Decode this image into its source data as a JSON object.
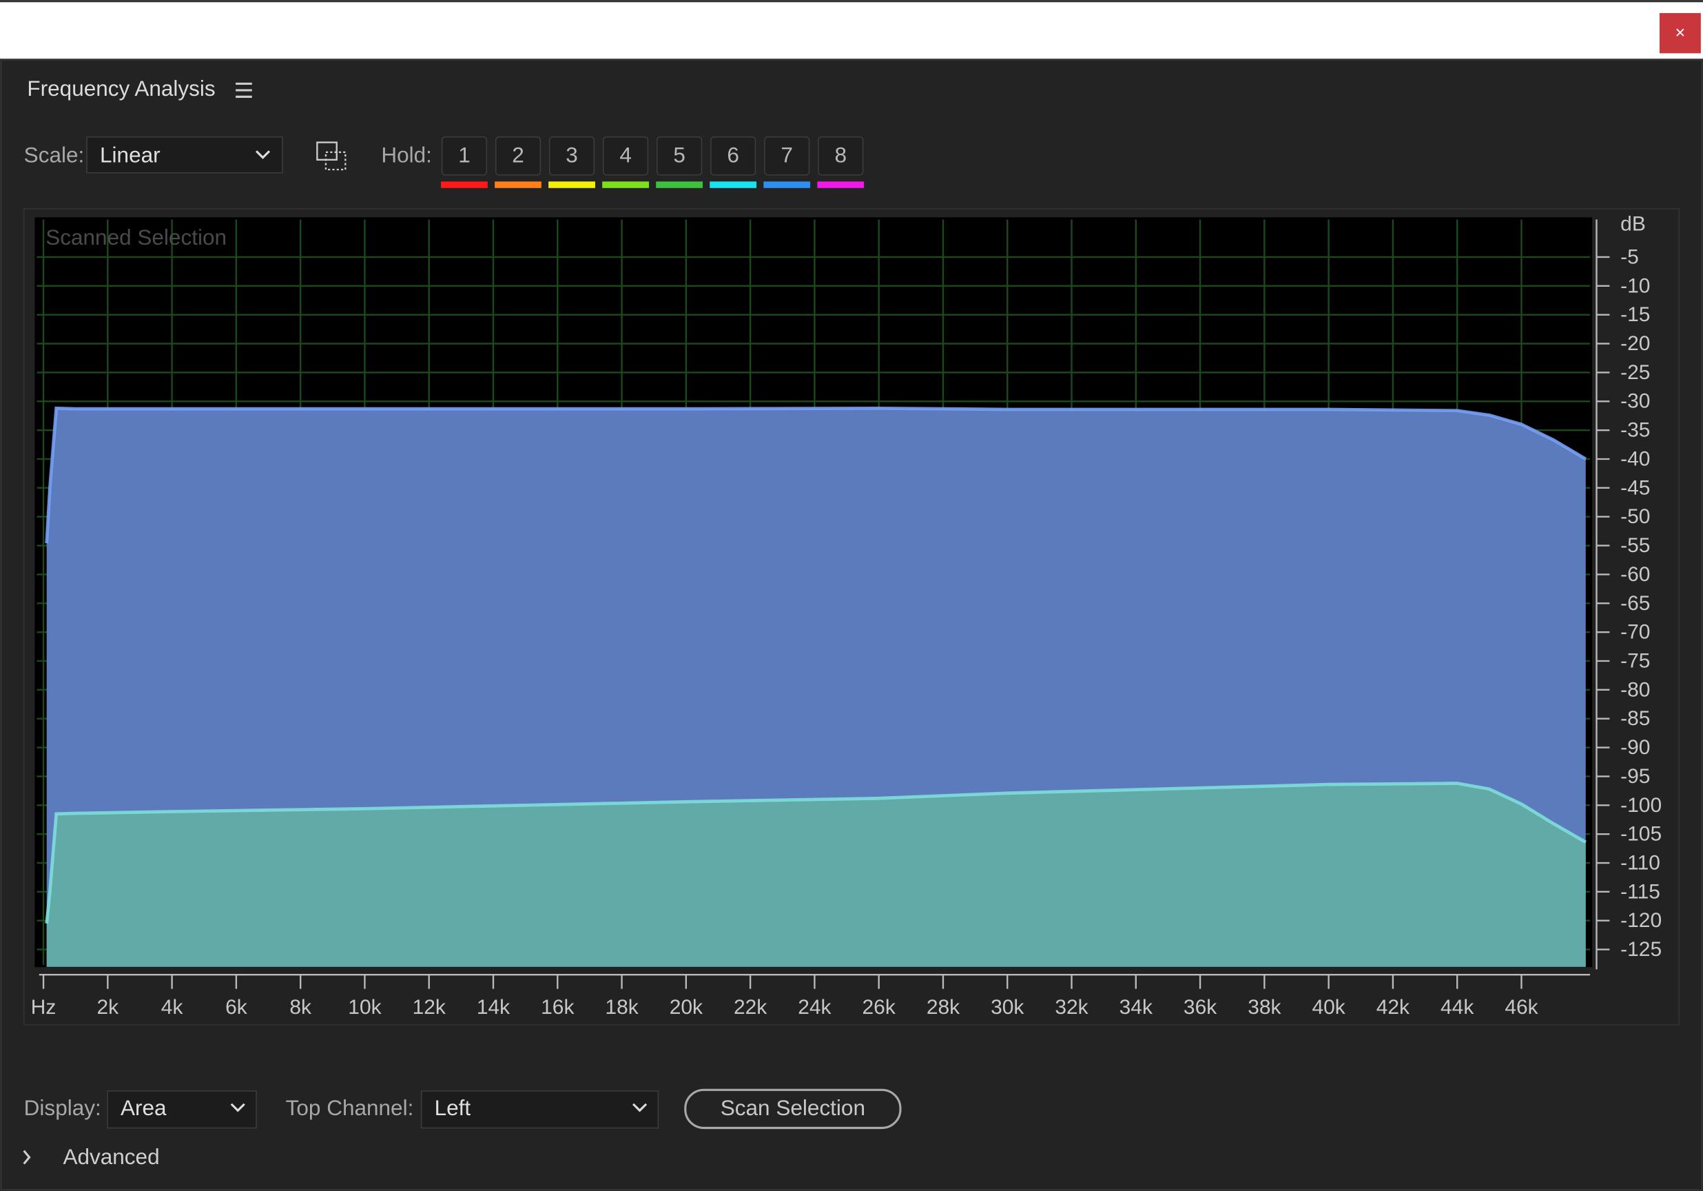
{
  "window": {
    "close": "×"
  },
  "panel": {
    "title": "Frequency Analysis",
    "scale_label": "Scale:",
    "scale_value": "Linear",
    "hold_label": "Hold:",
    "hold_buttons": [
      "1",
      "2",
      "3",
      "4",
      "5",
      "6",
      "7",
      "8"
    ],
    "hold_colors": [
      "#ff1a1a",
      "#ff7f1a",
      "#f5f00a",
      "#7ee01a",
      "#3ec23e",
      "#1ae3f0",
      "#2f8ff0",
      "#f01ae8"
    ],
    "display_label": "Display:",
    "display_value": "Area",
    "channel_label": "Top Channel:",
    "channel_value": "Left",
    "scan_button": "Scan Selection",
    "advanced": "Advanced"
  },
  "chart_data": {
    "type": "area",
    "annotation": "Scanned Selection",
    "y_label": "dB",
    "x": [
      100,
      200,
      400,
      1000,
      4000,
      10000,
      20000,
      26000,
      30000,
      40000,
      44000,
      45000,
      46000,
      47000,
      48000
    ],
    "series": [
      {
        "color": "#5b7bbd",
        "values": [
          -54.6,
          -45,
          -31.2,
          -31.3,
          -31.3,
          -31.3,
          -31.3,
          -31.2,
          -31.4,
          -31.4,
          -31.6,
          -32.4,
          -34,
          -36.7,
          -40
        ]
      },
      {
        "color": "#62aaa8",
        "values": [
          -120.5,
          -115,
          -101.5,
          -101.4,
          -101.1,
          -100.6,
          -99.4,
          -98.8,
          -97.9,
          -96.4,
          -96.2,
          -97.2,
          -99.8,
          -103.2,
          -106.4
        ]
      }
    ],
    "xlim": [
      0,
      48000
    ],
    "ylim": [
      -128,
      0
    ],
    "xticks": [
      {
        "value": 0,
        "label": "Hz"
      },
      {
        "value": 2000,
        "label": "2k"
      },
      {
        "value": 4000,
        "label": "4k"
      },
      {
        "value": 6000,
        "label": "6k"
      },
      {
        "value": 8000,
        "label": "8k"
      },
      {
        "value": 10000,
        "label": "10k"
      },
      {
        "value": 12000,
        "label": "12k"
      },
      {
        "value": 14000,
        "label": "14k"
      },
      {
        "value": 16000,
        "label": "16k"
      },
      {
        "value": 18000,
        "label": "18k"
      },
      {
        "value": 20000,
        "label": "20k"
      },
      {
        "value": 22000,
        "label": "22k"
      },
      {
        "value": 24000,
        "label": "24k"
      },
      {
        "value": 26000,
        "label": "26k"
      },
      {
        "value": 28000,
        "label": "28k"
      },
      {
        "value": 30000,
        "label": "30k"
      },
      {
        "value": 32000,
        "label": "32k"
      },
      {
        "value": 34000,
        "label": "34k"
      },
      {
        "value": 36000,
        "label": "36k"
      },
      {
        "value": 38000,
        "label": "38k"
      },
      {
        "value": 40000,
        "label": "40k"
      },
      {
        "value": 42000,
        "label": "42k"
      },
      {
        "value": 44000,
        "label": "44k"
      },
      {
        "value": 46000,
        "label": "46k"
      }
    ],
    "yticks": [
      -5,
      -10,
      -15,
      -20,
      -25,
      -30,
      -35,
      -40,
      -45,
      -50,
      -55,
      -60,
      -65,
      -70,
      -75,
      -80,
      -85,
      -90,
      -95,
      -100,
      -105,
      -110,
      -115,
      -120,
      -125
    ],
    "grid": true,
    "grid_color": "#1d4a1d"
  }
}
